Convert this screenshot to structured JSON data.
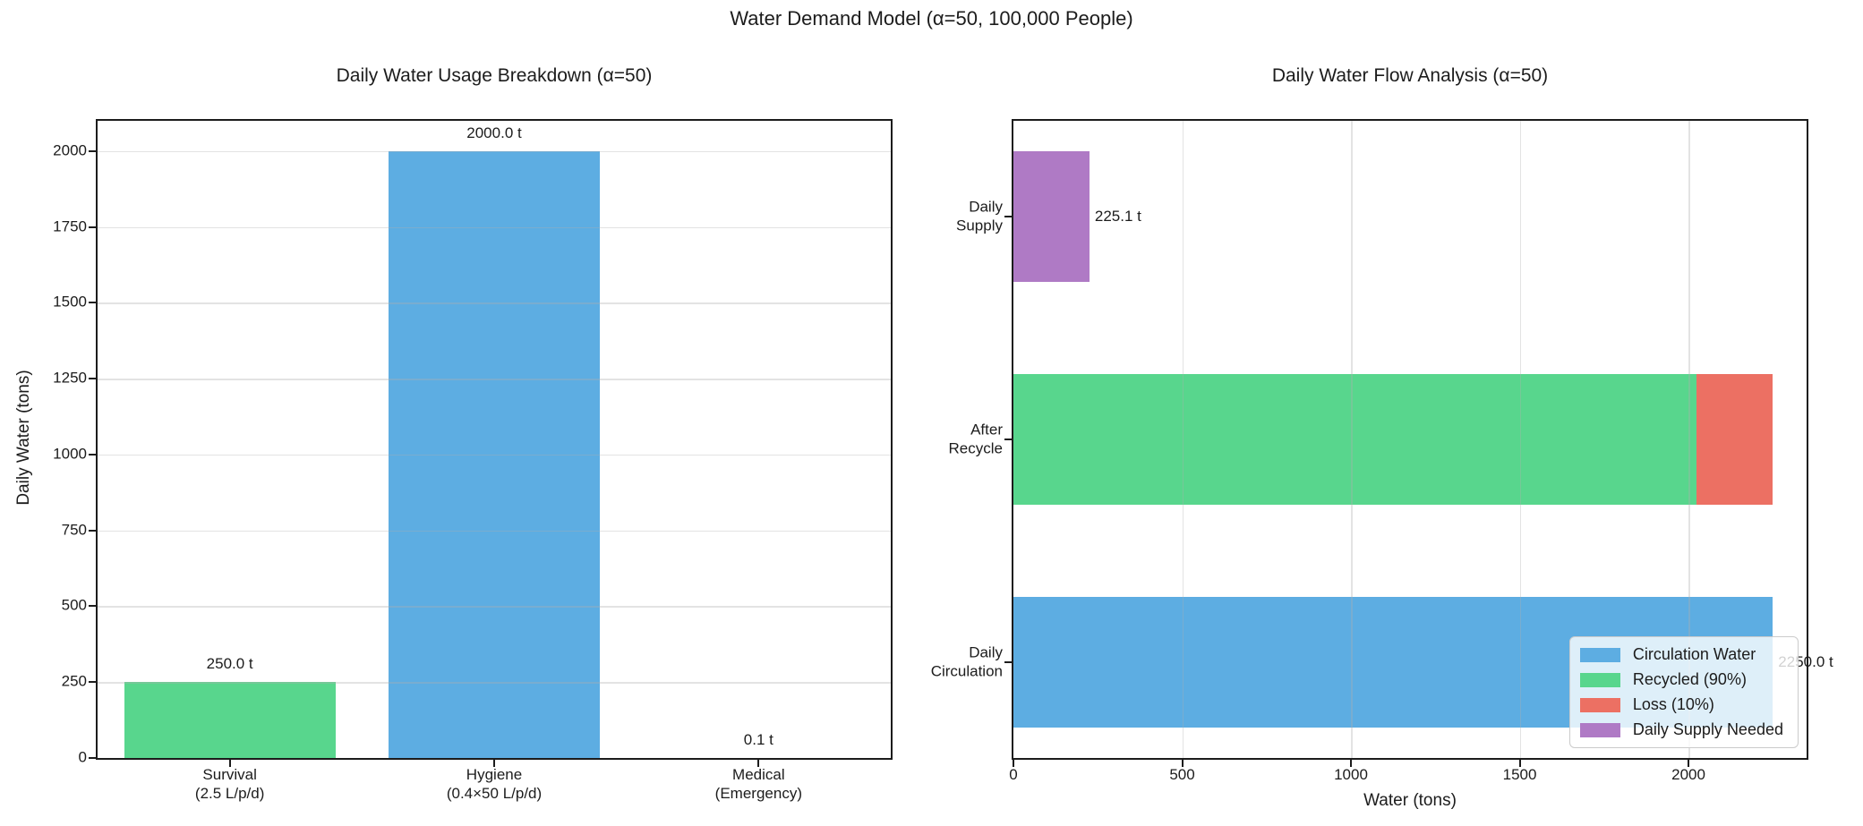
{
  "figure": {
    "suptitle": "Water Demand Model (α=50, 100,000 People)"
  },
  "chart_data": [
    {
      "type": "bar",
      "title": "Daily Water Usage Breakdown (α=50)",
      "ylabel": "Daily Water (tons)",
      "categories": [
        "Survival\n(2.5 L/p/d)",
        "Hygiene\n(0.4×50 L/p/d)",
        "Medical\n(Emergency)"
      ],
      "values": [
        250.0,
        2000.0,
        0.1
      ],
      "bar_labels": [
        "250.0 t",
        "2000.0 t",
        "0.1 t"
      ],
      "colors": [
        "#58D68D",
        "#5DADE2",
        "#EC7063"
      ],
      "yticks": [
        0,
        250,
        500,
        750,
        1000,
        1250,
        1500,
        1750,
        2000
      ],
      "ylim": [
        0,
        2100
      ],
      "grid": "horizontal"
    },
    {
      "type": "barh",
      "title": "Daily Water Flow Analysis (α=50)",
      "xlabel": "Water (tons)",
      "xticks": [
        0,
        500,
        1000,
        1500,
        2000
      ],
      "xlim": [
        0,
        2350
      ],
      "grid": "vertical",
      "rows": [
        {
          "category": "Daily\nSupply",
          "end_label": "225.1 t",
          "segments": [
            {
              "name": "Daily Supply Needed",
              "value": 225.1,
              "color": "#AF7AC5"
            }
          ]
        },
        {
          "category": "After\nRecycle",
          "end_label": "",
          "segments": [
            {
              "name": "Recycled (90%)",
              "value": 2025.0,
              "color": "#58D68D"
            },
            {
              "name": "Loss (10%)",
              "value": 225.0,
              "color": "#EC7063"
            }
          ]
        },
        {
          "category": "Daily\nCirculation",
          "end_label": "2250.0 t",
          "segments": [
            {
              "name": "Circulation Water",
              "value": 2250.0,
              "color": "#5DADE2"
            }
          ]
        }
      ],
      "legend": {
        "position": "lower right",
        "entries": [
          {
            "label": "Circulation Water",
            "color": "#5DADE2"
          },
          {
            "label": "Recycled (90%)",
            "color": "#58D68D"
          },
          {
            "label": "Loss (10%)",
            "color": "#EC7063"
          },
          {
            "label": "Daily Supply Needed",
            "color": "#AF7AC5"
          }
        ]
      }
    }
  ]
}
